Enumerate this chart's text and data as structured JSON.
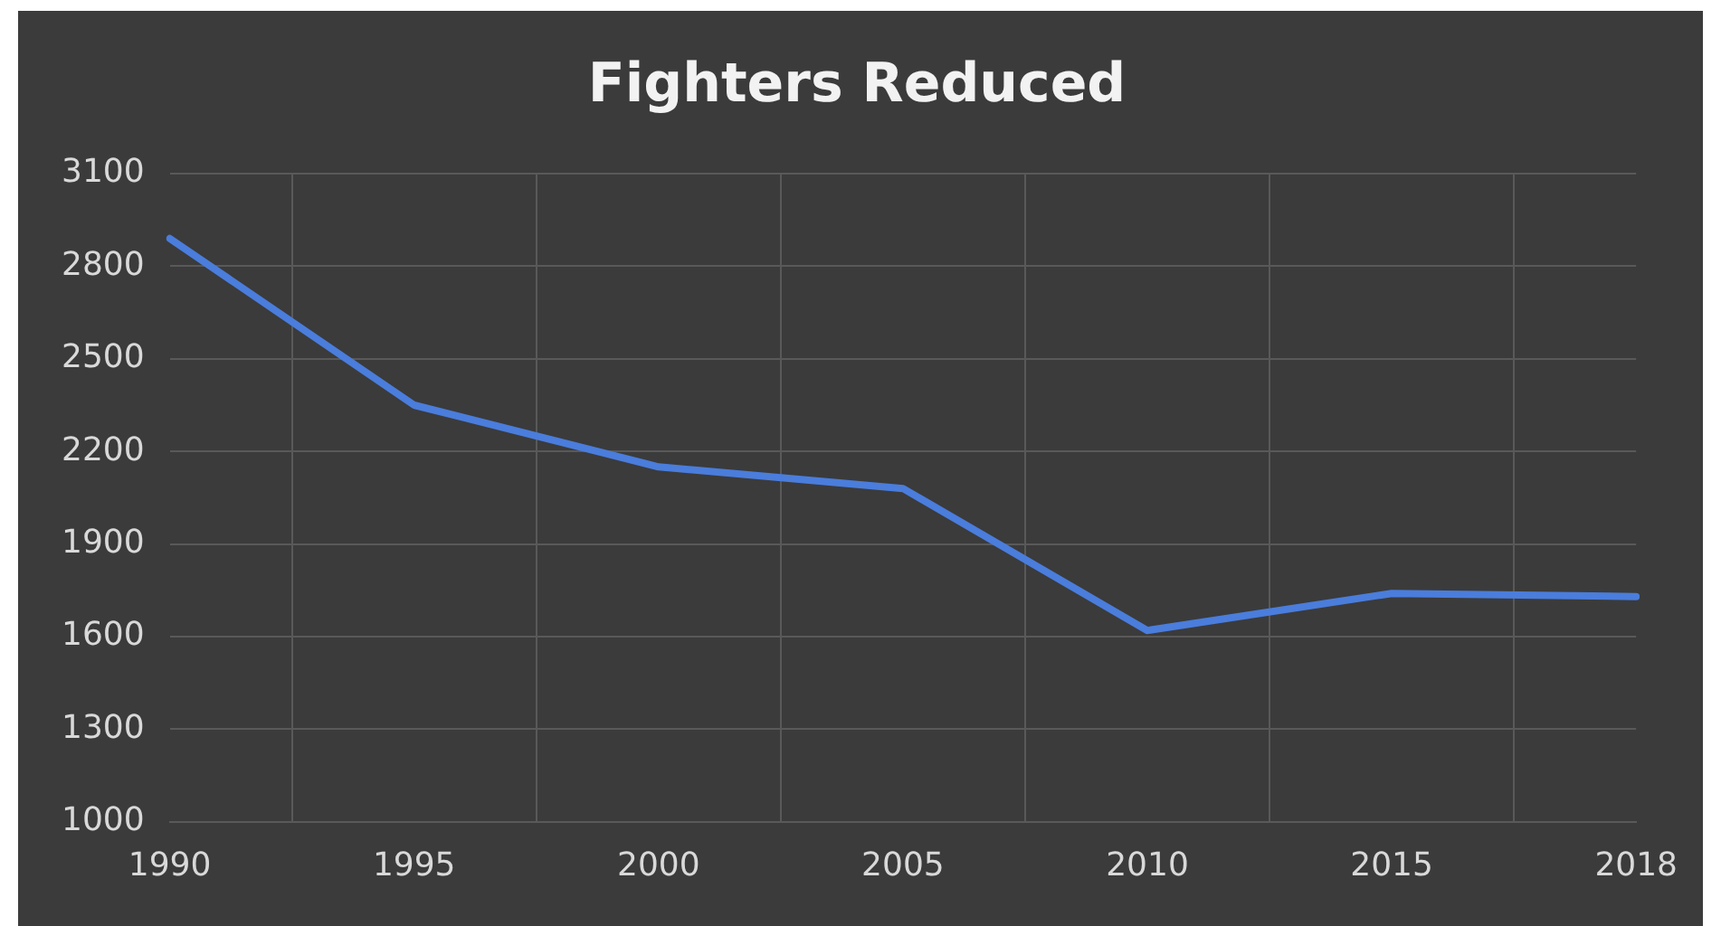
{
  "chart_data": {
    "type": "line",
    "title": "Fighters Reduced",
    "categories": [
      "1990",
      "1995",
      "2000",
      "2005",
      "2010",
      "2015",
      "2018"
    ],
    "series": [
      {
        "color": "#4a7ddc",
        "values": [
          2890,
          2350,
          2150,
          2080,
          1620,
          1740,
          1730
        ]
      }
    ],
    "ylim": [
      1000,
      3100
    ],
    "yticks": [
      1000,
      1300,
      1600,
      1900,
      2200,
      2500,
      2800,
      3100
    ],
    "grid": true,
    "legend": false,
    "marker": "none",
    "line_style": "solid"
  }
}
